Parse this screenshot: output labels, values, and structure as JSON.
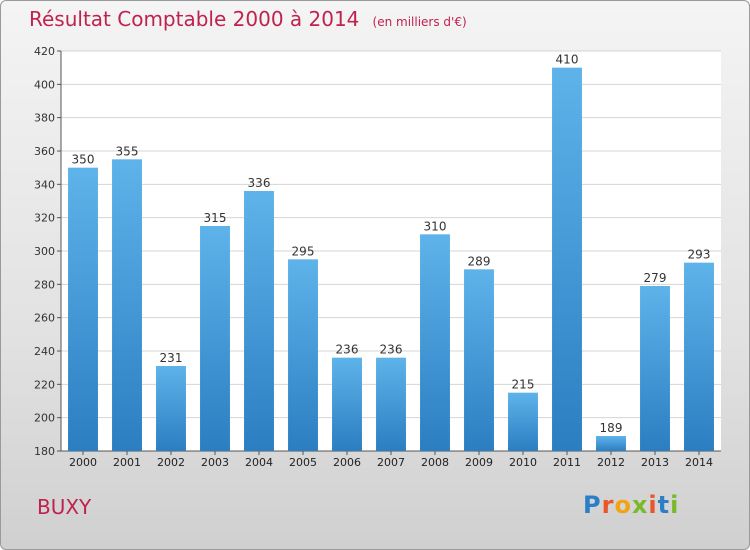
{
  "title": "Résultat Comptable 2000 à 2014",
  "subtitle": "(en milliers d'€)",
  "commune": "BUXY",
  "logo_text": "Proxiti",
  "logo_colors": [
    "#2a7fc6",
    "#e8562a",
    "#f2a311",
    "#7ab929",
    "#e8562a",
    "#2a7fc6",
    "#7ab929"
  ],
  "colors": {
    "bar_top": "#5eb3ea",
    "bar_bottom": "#2b7ec1",
    "title": "#c0224e"
  },
  "chart_data": {
    "type": "bar",
    "categories": [
      "2000",
      "2001",
      "2002",
      "2003",
      "2004",
      "2005",
      "2006",
      "2007",
      "2008",
      "2009",
      "2010",
      "2011",
      "2012",
      "2013",
      "2014"
    ],
    "values": [
      350,
      355,
      231,
      315,
      336,
      295,
      236,
      236,
      310,
      289,
      215,
      410,
      189,
      279,
      293
    ],
    "ylim": [
      180,
      420
    ],
    "yticks": [
      180,
      200,
      220,
      240,
      260,
      280,
      300,
      320,
      340,
      360,
      380,
      400,
      420
    ],
    "grid": true,
    "xlabel": "",
    "ylabel": ""
  }
}
